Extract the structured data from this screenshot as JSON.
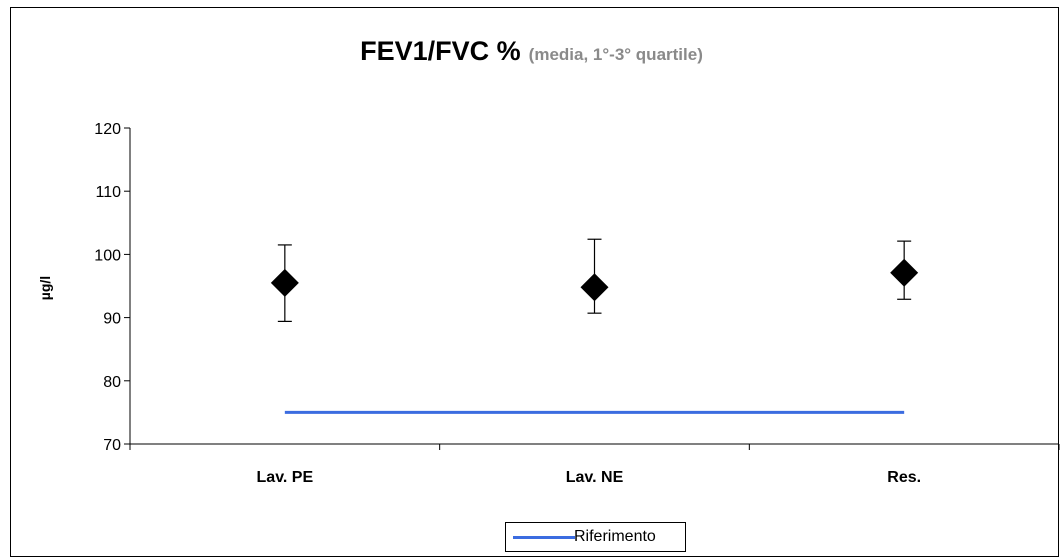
{
  "chart_data": {
    "type": "scatter",
    "title": "FEV1/FVC %",
    "subtitle": "(media, 1°-3° quartile)",
    "xlabel": "",
    "ylabel": "µg/l",
    "categories": [
      "Lav. PE",
      "Lav. NE",
      "Res."
    ],
    "ylim": [
      70,
      120
    ],
    "yticks": [
      70,
      80,
      90,
      100,
      110,
      120
    ],
    "grid": false,
    "series": [
      {
        "type": "scatter",
        "marker": "diamond",
        "color": "#000000",
        "values": [
          95.5,
          94.8,
          97.1
        ],
        "q1": [
          89.4,
          90.7,
          92.9
        ],
        "q3": [
          101.5,
          102.4,
          102.1
        ]
      },
      {
        "name": "Riferimento",
        "type": "line",
        "color": "#3b6ce0",
        "values": [
          75,
          75,
          75
        ]
      }
    ],
    "legend": {
      "position": "bottom-center",
      "entries": [
        "Riferimento"
      ]
    }
  }
}
